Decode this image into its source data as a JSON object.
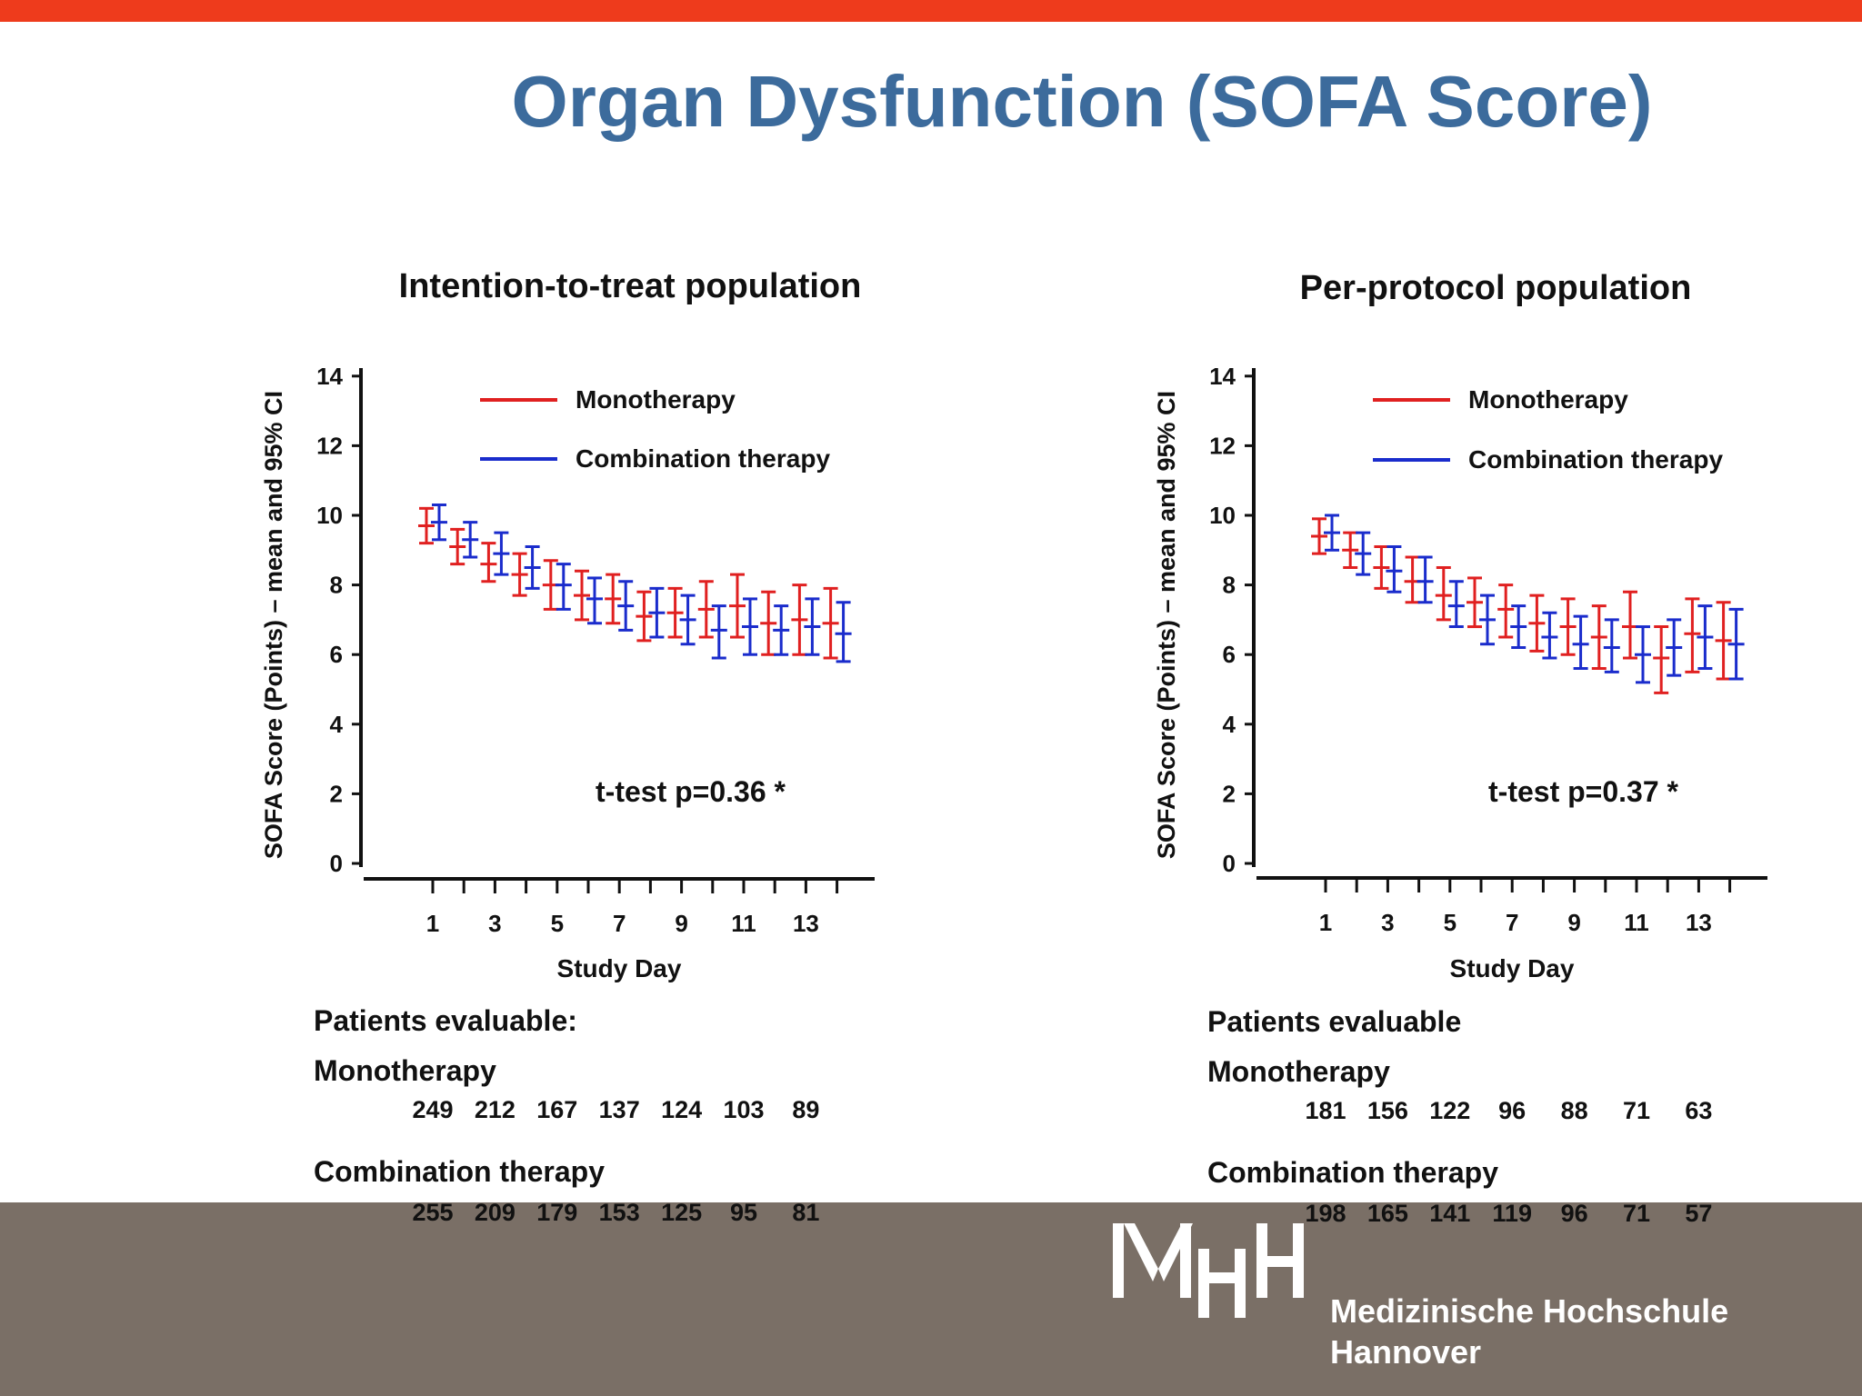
{
  "slide": {
    "title": "Organ Dysfunction (SOFA Score)",
    "accent_bar_color": "#ee3b1c",
    "title_color": "#3c6b9c",
    "footer_color": "#7a6f66"
  },
  "chart_data": [
    {
      "type": "line",
      "title": "Intention-to-treat population",
      "xlabel": "Study Day",
      "ylabel": "SOFA Score (Points) – mean and 95% CI",
      "xlim": [
        0,
        14.5
      ],
      "ylim": [
        0,
        14
      ],
      "x_ticks": [
        1,
        2,
        3,
        4,
        5,
        6,
        7,
        8,
        9,
        10,
        11,
        12,
        13,
        14
      ],
      "x_tick_labels": [
        "1",
        "3",
        "5",
        "7",
        "9",
        "11",
        "13"
      ],
      "x_tick_label_values": [
        1,
        3,
        5,
        7,
        9,
        11,
        13
      ],
      "y_ticks": [
        0,
        2,
        4,
        6,
        8,
        10,
        12,
        14
      ],
      "grid": false,
      "legend_position": "top-right",
      "annotation": "t-test p=0.36 *",
      "series": [
        {
          "name": "Monotherapy",
          "color": "#e02020",
          "x": [
            1,
            2,
            3,
            4,
            5,
            6,
            7,
            8,
            9,
            10,
            11,
            12,
            13,
            14
          ],
          "mean": [
            9.7,
            9.1,
            8.6,
            8.3,
            8.0,
            7.7,
            7.6,
            7.1,
            7.2,
            7.3,
            7.4,
            6.9,
            7.0,
            6.9
          ],
          "lower": [
            9.2,
            8.6,
            8.1,
            7.7,
            7.3,
            7.0,
            6.9,
            6.4,
            6.5,
            6.5,
            6.5,
            6.0,
            6.0,
            5.9
          ],
          "upper": [
            10.2,
            9.6,
            9.2,
            8.9,
            8.7,
            8.4,
            8.3,
            7.8,
            7.9,
            8.1,
            8.3,
            7.8,
            8.0,
            7.9
          ]
        },
        {
          "name": "Combination therapy",
          "color": "#1a2ccc",
          "x": [
            1,
            2,
            3,
            4,
            5,
            6,
            7,
            8,
            9,
            10,
            11,
            12,
            13,
            14
          ],
          "mean": [
            9.8,
            9.3,
            8.9,
            8.5,
            8.0,
            7.6,
            7.4,
            7.2,
            7.0,
            6.7,
            6.8,
            6.7,
            6.8,
            6.6
          ],
          "lower": [
            9.3,
            8.8,
            8.3,
            7.9,
            7.3,
            6.9,
            6.7,
            6.5,
            6.3,
            5.9,
            6.0,
            6.0,
            6.0,
            5.8
          ],
          "upper": [
            10.3,
            9.8,
            9.5,
            9.1,
            8.6,
            8.2,
            8.1,
            7.9,
            7.7,
            7.4,
            7.6,
            7.4,
            7.6,
            7.5
          ]
        }
      ],
      "patients_evaluable": {
        "heading": "Patients evaluable:",
        "mono_label": "Monotherapy",
        "mono_counts": [
          "249",
          "212",
          "167",
          "137",
          "124",
          "103",
          "89"
        ],
        "combo_label": "Combination therapy",
        "combo_counts": [
          "255",
          "209",
          "179",
          "153",
          "125",
          "95",
          "81"
        ]
      }
    },
    {
      "type": "line",
      "title": "Per-protocol population",
      "xlabel": "Study Day",
      "ylabel": "SOFA Score (Points) – mean and 95% CI",
      "xlim": [
        0,
        14.5
      ],
      "ylim": [
        0,
        14
      ],
      "x_ticks": [
        1,
        2,
        3,
        4,
        5,
        6,
        7,
        8,
        9,
        10,
        11,
        12,
        13,
        14
      ],
      "x_tick_labels": [
        "1",
        "3",
        "5",
        "7",
        "9",
        "11",
        "13"
      ],
      "x_tick_label_values": [
        1,
        3,
        5,
        7,
        9,
        11,
        13
      ],
      "y_ticks": [
        0,
        2,
        4,
        6,
        8,
        10,
        12,
        14
      ],
      "grid": false,
      "legend_position": "top-right",
      "annotation": "t-test p=0.37 *",
      "series": [
        {
          "name": "Monotherapy",
          "color": "#e02020",
          "x": [
            1,
            2,
            3,
            4,
            5,
            6,
            7,
            8,
            9,
            10,
            11,
            12,
            13,
            14
          ],
          "mean": [
            9.4,
            9.0,
            8.5,
            8.1,
            7.7,
            7.5,
            7.3,
            6.9,
            6.8,
            6.5,
            6.8,
            5.9,
            6.6,
            6.4
          ],
          "lower": [
            8.9,
            8.5,
            7.9,
            7.5,
            7.0,
            6.8,
            6.5,
            6.1,
            6.0,
            5.6,
            5.9,
            4.9,
            5.5,
            5.3
          ],
          "upper": [
            9.9,
            9.5,
            9.1,
            8.8,
            8.5,
            8.2,
            8.0,
            7.7,
            7.6,
            7.4,
            7.8,
            6.8,
            7.6,
            7.5
          ]
        },
        {
          "name": "Combination therapy",
          "color": "#1a2ccc",
          "x": [
            1,
            2,
            3,
            4,
            5,
            6,
            7,
            8,
            9,
            10,
            11,
            12,
            13,
            14
          ],
          "mean": [
            9.5,
            8.9,
            8.4,
            8.1,
            7.4,
            7.0,
            6.8,
            6.5,
            6.3,
            6.2,
            6.0,
            6.2,
            6.5,
            6.3
          ],
          "lower": [
            9.0,
            8.3,
            7.8,
            7.5,
            6.8,
            6.3,
            6.2,
            5.9,
            5.6,
            5.5,
            5.2,
            5.4,
            5.6,
            5.3
          ],
          "upper": [
            10.0,
            9.5,
            9.1,
            8.8,
            8.1,
            7.7,
            7.4,
            7.2,
            7.1,
            7.0,
            6.8,
            7.0,
            7.4,
            7.3
          ]
        }
      ],
      "patients_evaluable": {
        "heading": "Patients evaluable",
        "mono_label": "Monotherapy",
        "mono_counts": [
          "181",
          "156",
          "122",
          "96",
          "88",
          "71",
          "63"
        ],
        "combo_label": "Combination therapy",
        "combo_counts": [
          "198",
          "165",
          "141",
          "119",
          "96",
          "71",
          "57"
        ]
      }
    }
  ],
  "logo": {
    "name_line1": "Medizinische Hochschule",
    "name_line2": "Hannover",
    "icon": "mhh-logo-icon"
  }
}
